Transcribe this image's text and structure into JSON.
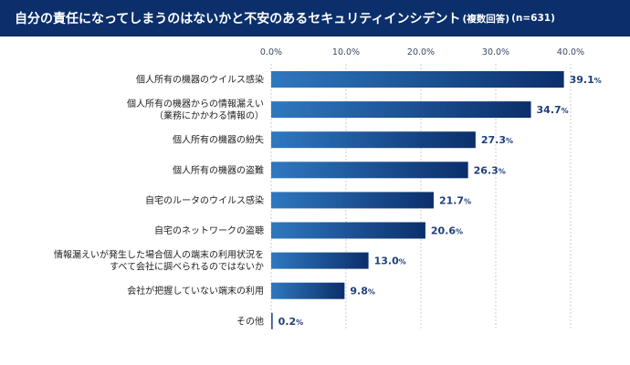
{
  "header": {
    "title": "自分の責任になってしまうのはないかと不安のあるセキュリティインシデント",
    "note": "(複数回答)",
    "sample": "(n=631)"
  },
  "colors": {
    "header_bg": "#0b2f6b",
    "bar_start": "#2f78c0",
    "bar_end": "#0b2f6b",
    "value_text": "#1f3f7c"
  },
  "chart_data": {
    "type": "bar",
    "orientation": "horizontal",
    "categories": [
      [
        "個人所有の機器のウイルス感染"
      ],
      [
        "個人所有の機器からの情報漏えい",
        "（業務にかかわる情報の）"
      ],
      [
        "個人所有の機器の紛失"
      ],
      [
        "個人所有の機器の盗難"
      ],
      [
        "自宅のルータのウイルス感染"
      ],
      [
        "自宅のネットワークの盗聴"
      ],
      [
        "情報漏えいが発生した場合個人の端末の利用状況を",
        "すべて会社に調べられるのではないか"
      ],
      [
        "会社が把握していない端末の利用"
      ],
      [
        "その他"
      ]
    ],
    "values": [
      39.1,
      34.7,
      27.3,
      26.3,
      21.7,
      20.6,
      13.0,
      9.8,
      0.2
    ],
    "value_labels": [
      "39.1",
      "34.7",
      "27.3",
      "26.3",
      "21.7",
      "20.6",
      "13.0",
      "9.8",
      "0.2"
    ],
    "unit": "%",
    "xlim": [
      0,
      40
    ],
    "ticks": [
      "0.0%",
      "10.0%",
      "20.0%",
      "30.0%",
      "40.0%"
    ],
    "tick_values": [
      0,
      10,
      20,
      30,
      40
    ],
    "grid": true
  }
}
